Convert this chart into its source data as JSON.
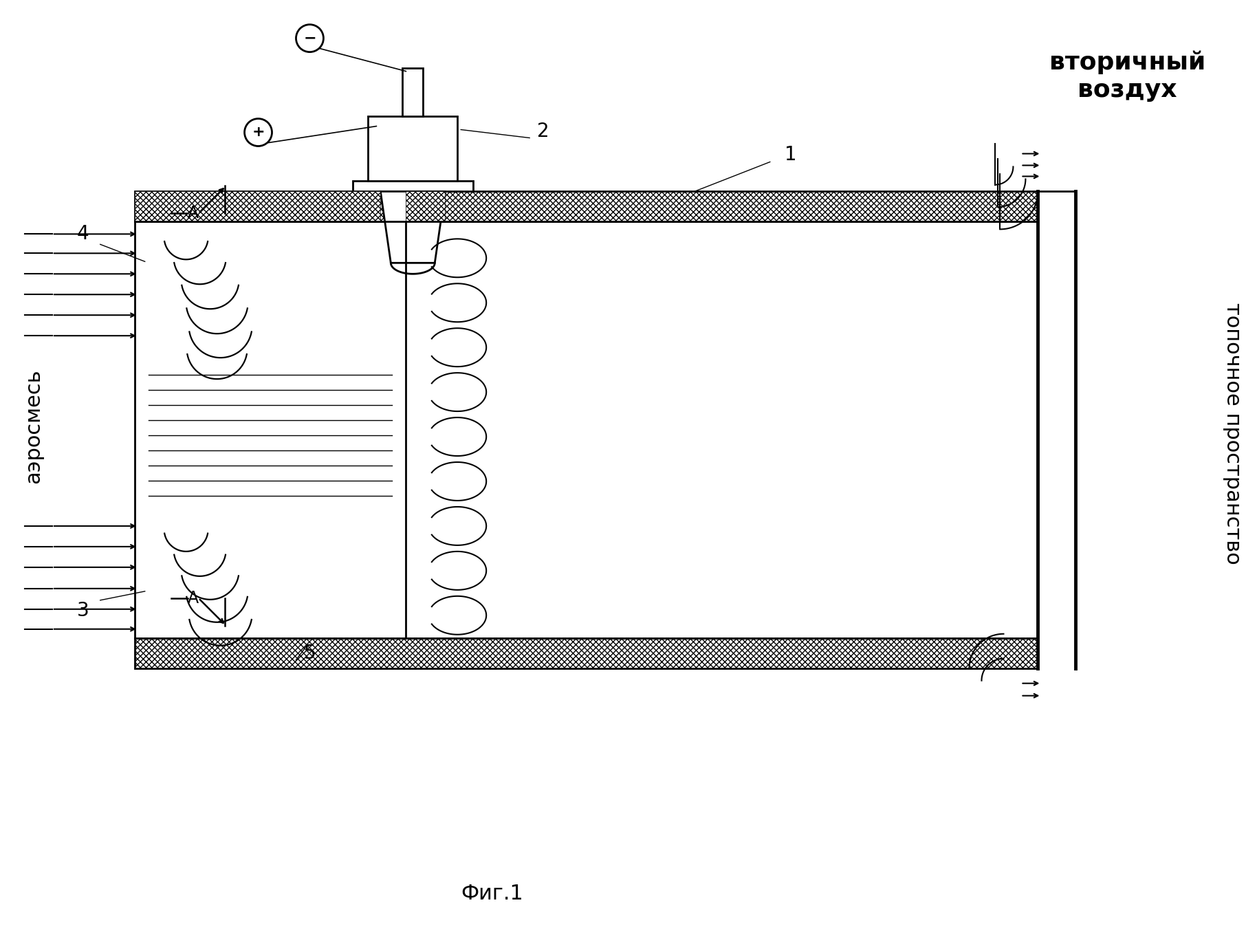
{
  "bg_color": "#ffffff",
  "lc": "#000000",
  "label_secondary": "вторичный\nвоздух",
  "label_furnace": "топочное пространство",
  "label_aero": "аэросмесь",
  "fig_caption": "Фиг.1",
  "label_A": "А",
  "fig_w": 18.12,
  "fig_h": 13.64,
  "dpi": 100
}
